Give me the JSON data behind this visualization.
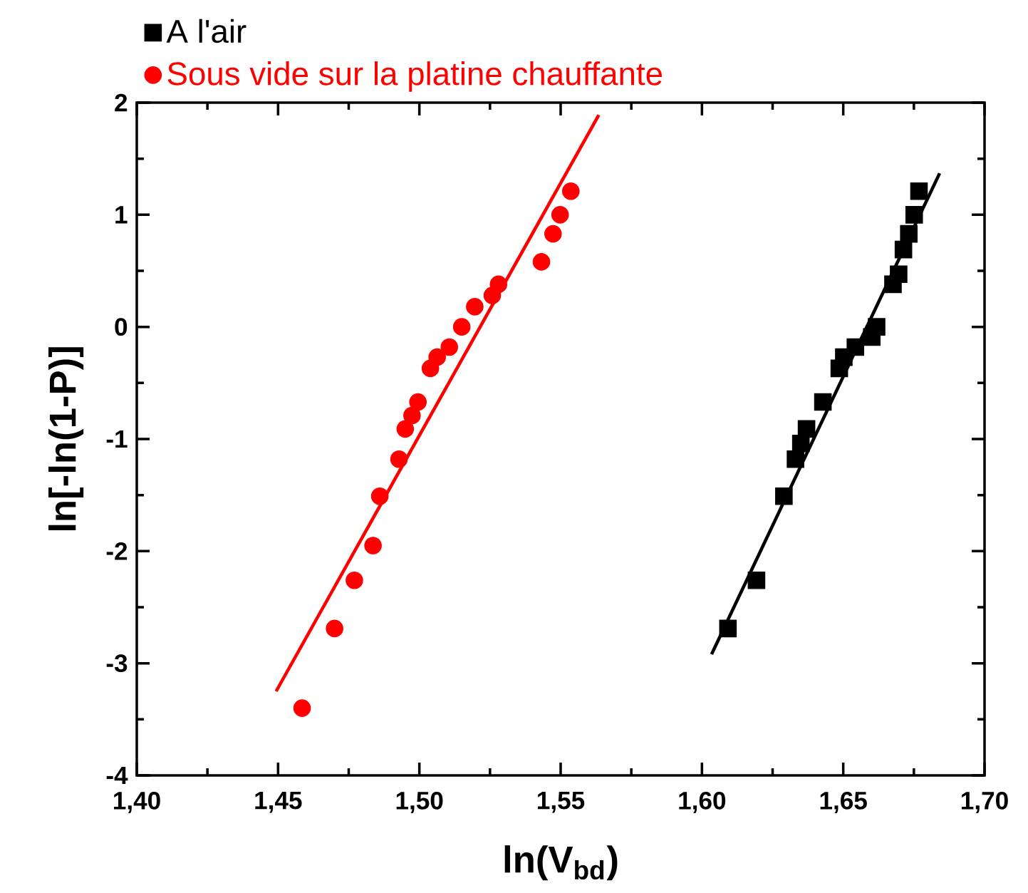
{
  "chart_data": {
    "type": "scatter",
    "xlabel": "ln(V$_{bd}$)",
    "ylabel": "ln[-ln(1-P)]",
    "legend": "top left",
    "xlim": [
      1.4,
      1.7
    ],
    "ylim": [
      -4,
      2
    ],
    "xticks": [
      {
        "value": 1.4,
        "label": "1,40"
      },
      {
        "value": 1.45,
        "label": "1,45"
      },
      {
        "value": 1.5,
        "label": "1,50"
      },
      {
        "value": 1.55,
        "label": "1,55"
      },
      {
        "value": 1.6,
        "label": "1,60"
      },
      {
        "value": 1.65,
        "label": "1,65"
      },
      {
        "value": 1.7,
        "label": "1,70"
      }
    ],
    "yticks": [
      -4,
      -3,
      -2,
      -1,
      0,
      1,
      2
    ],
    "series": [
      {
        "name": "A l'air",
        "type": "scatter",
        "marker": "square",
        "color": "#000000",
        "x": [
          1.6092,
          1.6193,
          1.629,
          1.6331,
          1.635,
          1.637,
          1.6428,
          1.6486,
          1.6502,
          1.6543,
          1.6601,
          1.6618,
          1.6676,
          1.6696,
          1.6713,
          1.6732,
          1.6751,
          1.6768
        ],
        "values": [
          -2.69,
          -2.26,
          -1.51,
          -1.18,
          -1.04,
          -0.91,
          -0.67,
          -0.37,
          -0.27,
          -0.18,
          -0.09,
          0,
          0.38,
          0.47,
          0.69,
          0.83,
          1.0,
          1.21
        ]
      },
      {
        "name": "Sous vide sur la platine chauffante",
        "type": "scatter",
        "marker": "circle",
        "color": "#ff0000",
        "x": [
          1.4585,
          1.47,
          1.477,
          1.4836,
          1.486,
          1.4928,
          1.495,
          1.4974,
          1.4995,
          1.5039,
          1.5063,
          1.5106,
          1.515,
          1.5196,
          1.5258,
          1.528,
          1.5432,
          1.5473,
          1.5498,
          1.5536
        ],
        "values": [
          -3.4,
          -2.69,
          -2.26,
          -1.95,
          -1.51,
          -1.18,
          -0.91,
          -0.79,
          -0.67,
          -0.37,
          -0.27,
          -0.18,
          0,
          0.18,
          0.28,
          0.38,
          0.58,
          0.83,
          1.0,
          1.21
        ]
      },
      {
        "type": "line",
        "line_style": "solid",
        "color": "#000000",
        "x": [
          1.6034,
          1.6841
        ],
        "values": [
          -2.92,
          1.37
        ]
      },
      {
        "type": "line",
        "line_style": "solid",
        "color": "#ff0000",
        "x": [
          1.4493,
          1.5635
        ],
        "values": [
          -3.25,
          1.89
        ]
      }
    ]
  }
}
